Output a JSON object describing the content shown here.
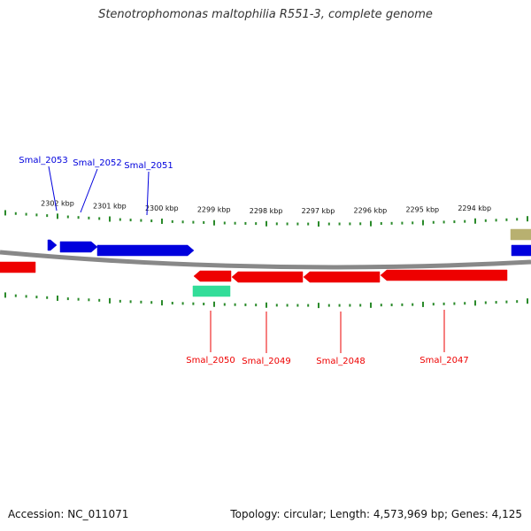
{
  "title": "Stenotrophomonas maltophilia R551-3, complete genome",
  "footer": {
    "accession": "Accession: NC_011071",
    "stats": "Topology: circular; Length: 4,573,969 bp; Genes: 4,125"
  },
  "colors": {
    "forward": "#0000dd",
    "reverse": "#ee0000",
    "rna": "#33dd99",
    "other": "#b8b070",
    "backbone": "#888888",
    "ticks": "#2a8a2a"
  },
  "ticks": [
    {
      "label": "2302 kbp",
      "kbp": 2302
    },
    {
      "label": "2301 kbp",
      "kbp": 2301
    },
    {
      "label": "2300 kbp",
      "kbp": 2300
    },
    {
      "label": "2299 kbp",
      "kbp": 2299
    },
    {
      "label": "2298 kbp",
      "kbp": 2298
    },
    {
      "label": "2297 kbp",
      "kbp": 2297
    },
    {
      "label": "2296 kbp",
      "kbp": 2296
    },
    {
      "label": "2295 kbp",
      "kbp": 2295
    },
    {
      "label": "2294 kbp",
      "kbp": 2294
    }
  ],
  "genes": [
    {
      "label": "Smal_2053",
      "strand": "forward"
    },
    {
      "label": "Smal_2052",
      "strand": "forward"
    },
    {
      "label": "Smal_2051",
      "strand": "forward"
    },
    {
      "label": "Smal_2050",
      "strand": "reverse"
    },
    {
      "label": "Smal_2049",
      "strand": "reverse"
    },
    {
      "label": "Smal_2048",
      "strand": "reverse"
    },
    {
      "label": "Smal_2047",
      "strand": "reverse"
    }
  ]
}
